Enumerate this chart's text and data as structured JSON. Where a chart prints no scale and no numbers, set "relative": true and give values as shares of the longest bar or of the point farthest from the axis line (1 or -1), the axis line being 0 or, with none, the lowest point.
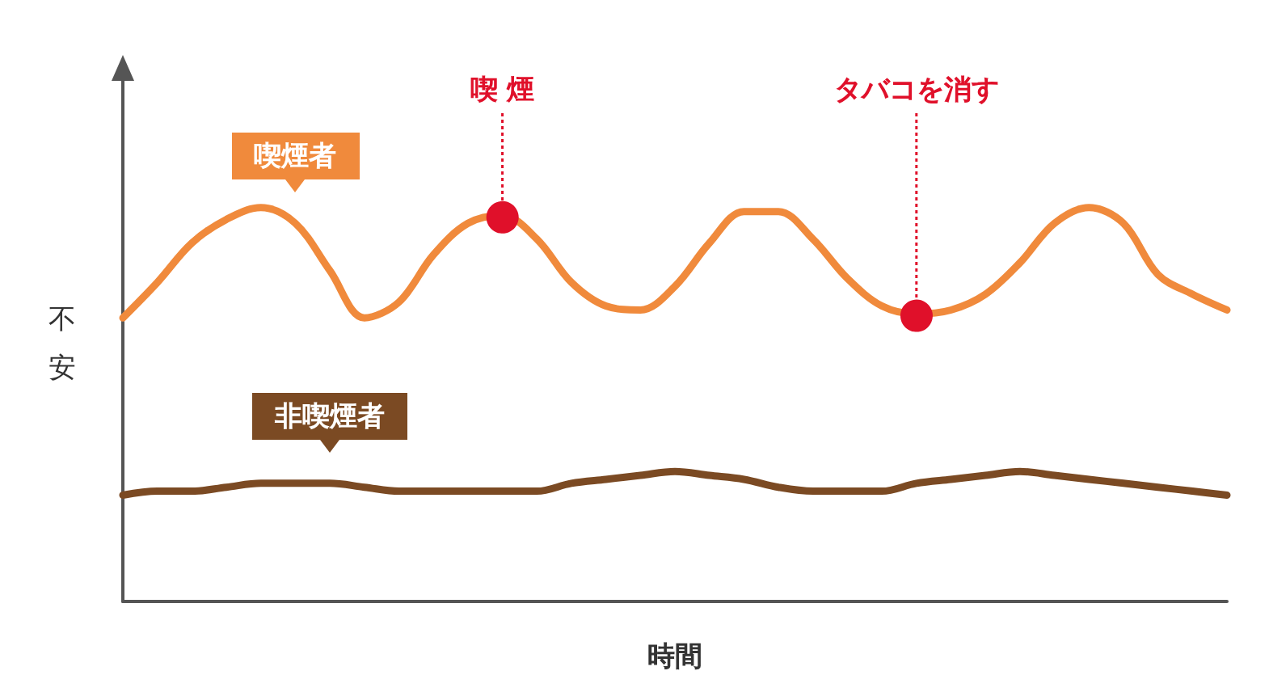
{
  "chart_data": {
    "type": "line",
    "relative": true,
    "xlabel": "時間",
    "ylabel": "不安",
    "legend": false,
    "marker": "none",
    "grid": false,
    "categories": [
      null,
      null,
      null,
      null,
      null,
      null,
      null,
      null,
      null,
      null,
      null,
      null,
      null,
      null,
      null,
      null,
      null,
      null,
      null,
      null,
      null,
      null,
      null,
      null,
      null,
      null,
      null,
      null,
      null,
      null,
      null,
      null,
      null
    ],
    "series": [
      {
        "name": "喫煙者",
        "color": "#f08a3c",
        "values": [
          0.72,
          0.81,
          0.91,
          0.97,
          1.0,
          0.96,
          0.84,
          0.72,
          0.76,
          0.88,
          0.96,
          0.98,
          0.92,
          0.81,
          0.75,
          0.74,
          0.8,
          0.91,
          0.99,
          0.99,
          0.92,
          0.82,
          0.75,
          0.73,
          0.74,
          0.78,
          0.86,
          0.96,
          1.0,
          0.96,
          0.83,
          0.78,
          0.74
        ]
      },
      {
        "name": "非喫煙者",
        "color": "#7b4a23",
        "values": [
          0.27,
          0.28,
          0.28,
          0.29,
          0.3,
          0.3,
          0.3,
          0.29,
          0.28,
          0.28,
          0.28,
          0.28,
          0.28,
          0.3,
          0.31,
          0.32,
          0.33,
          0.32,
          0.31,
          0.29,
          0.28,
          0.28,
          0.28,
          0.3,
          0.31,
          0.32,
          0.33,
          0.32,
          0.31,
          0.3,
          0.29,
          0.28,
          0.27
        ]
      }
    ],
    "annotations": [
      {
        "text": "喫 煙",
        "y": 0.98
      },
      {
        "text": "タバコを消す",
        "y": 0.73
      }
    ]
  }
}
